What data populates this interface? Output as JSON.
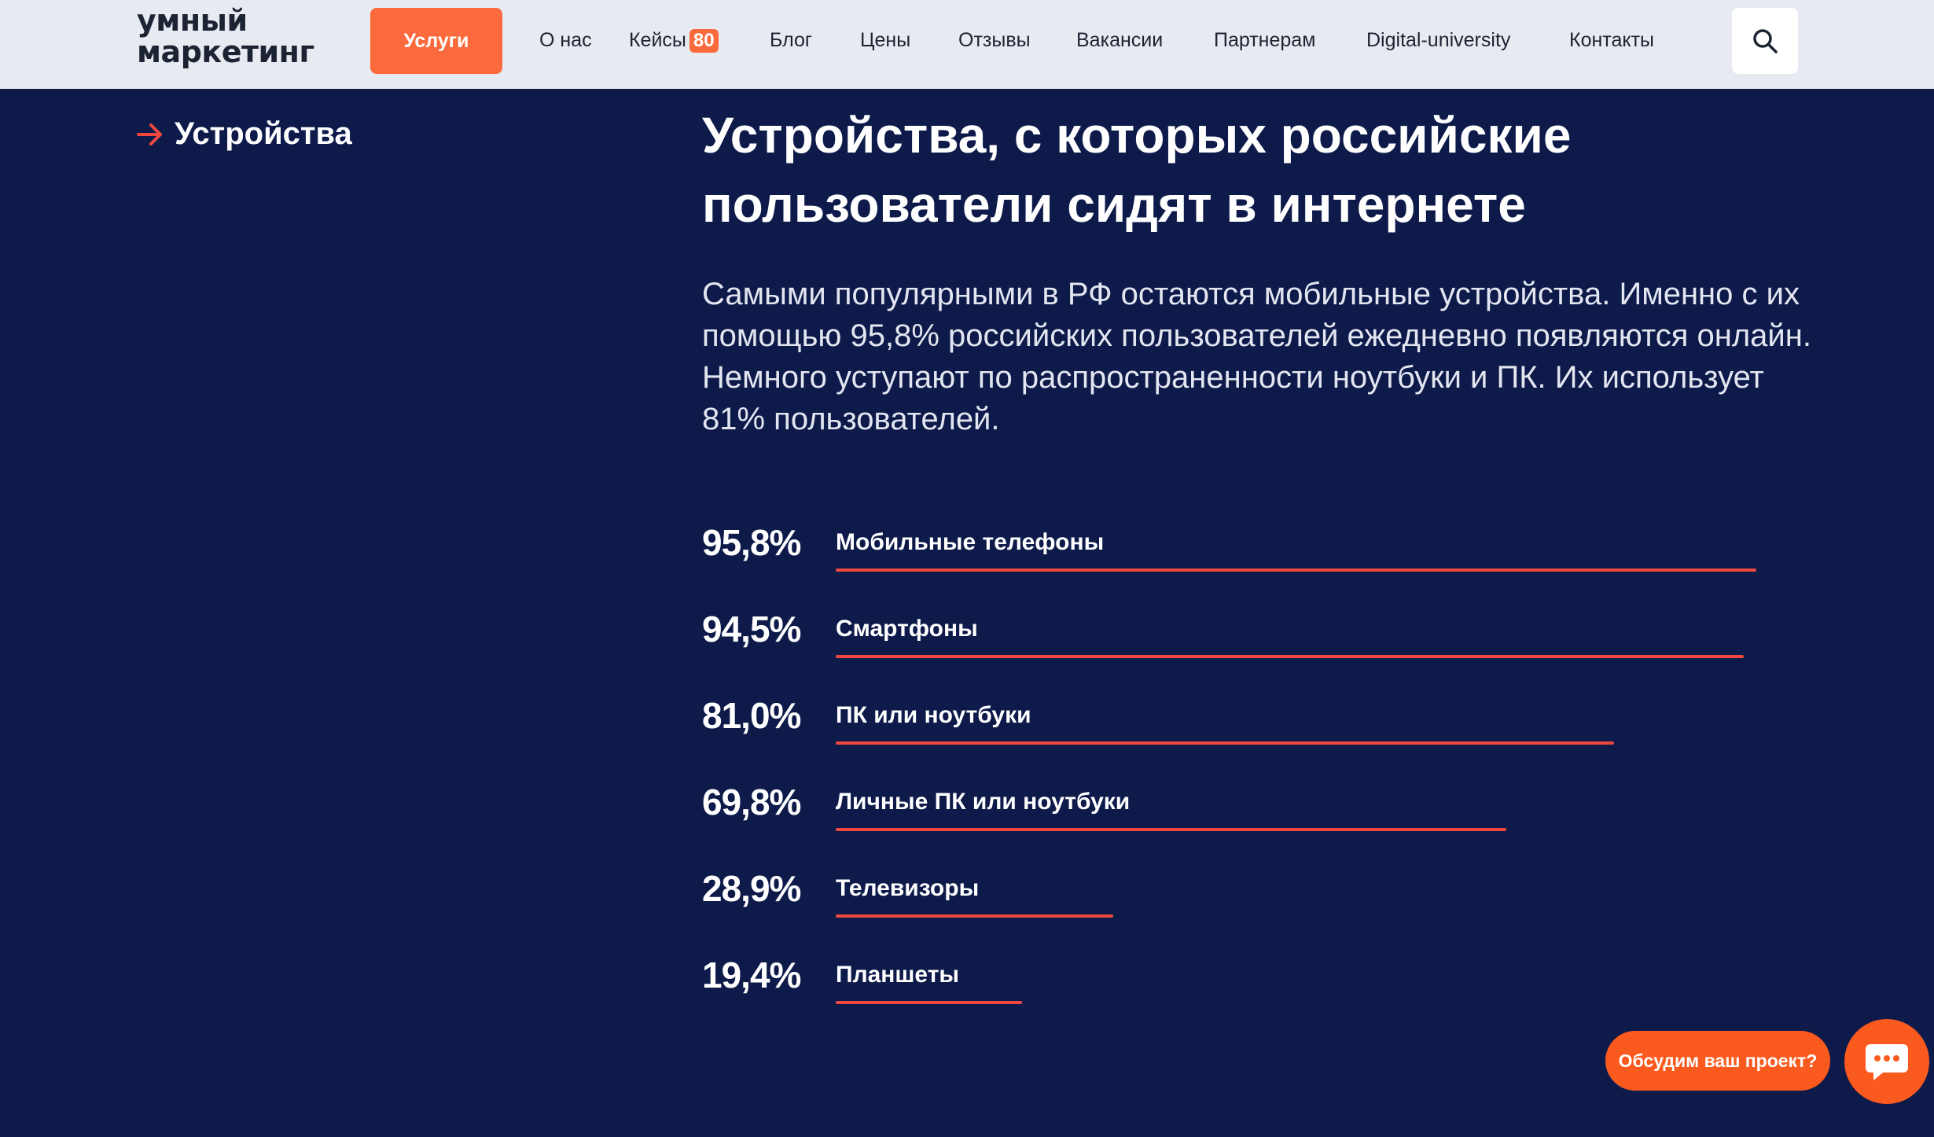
{
  "header": {
    "logo_line1": "умный",
    "logo_line2": "маркетинг",
    "services_label": "Услуги",
    "nav": [
      {
        "label": "О нас"
      },
      {
        "label": "Кейсы",
        "badge": "80"
      },
      {
        "label": "Блог"
      },
      {
        "label": "Цены"
      },
      {
        "label": "Отзывы"
      },
      {
        "label": "Вакансии"
      },
      {
        "label": "Партнерам"
      },
      {
        "label": "Digital-university"
      },
      {
        "label": "Контакты"
      }
    ],
    "search_icon": "search-icon"
  },
  "sidebar": {
    "section_label": "Устройства",
    "arrow_icon": "arrow-right-icon"
  },
  "main": {
    "title": "Устройства, с которых российские пользователи сидят в интернете",
    "intro": "Самыми популярными в РФ остаются мобильные устройства. Именно с их помощью 95,8% российских пользователей ежедневно появляются онлайн. Немного уступают по распространенности ноутбуки и ПК. Их использует 81% пользователей."
  },
  "chart_data": {
    "type": "bar",
    "categories": [
      "Мобильные телефоны",
      "Смартфоны",
      "ПК или ноутбуки",
      "Личные ПК или ноутбуки",
      "Телевизоры",
      "Планшеты"
    ],
    "values": [
      95.8,
      94.5,
      81.0,
      69.8,
      28.9,
      19.4
    ],
    "value_labels": [
      "95,8%",
      "94,5%",
      "81,0%",
      "69,8%",
      "28,9%",
      "19,4%"
    ],
    "xlim": [
      0,
      100
    ],
    "bar_color": "#f0483e"
  },
  "floating": {
    "discuss_label": "Обсудим ваш проект?",
    "chat_icon": "chat-icon"
  },
  "colors": {
    "background": "#0d1a4a",
    "accent": "#fb6a3c",
    "header_bg": "#e7eaf0"
  }
}
